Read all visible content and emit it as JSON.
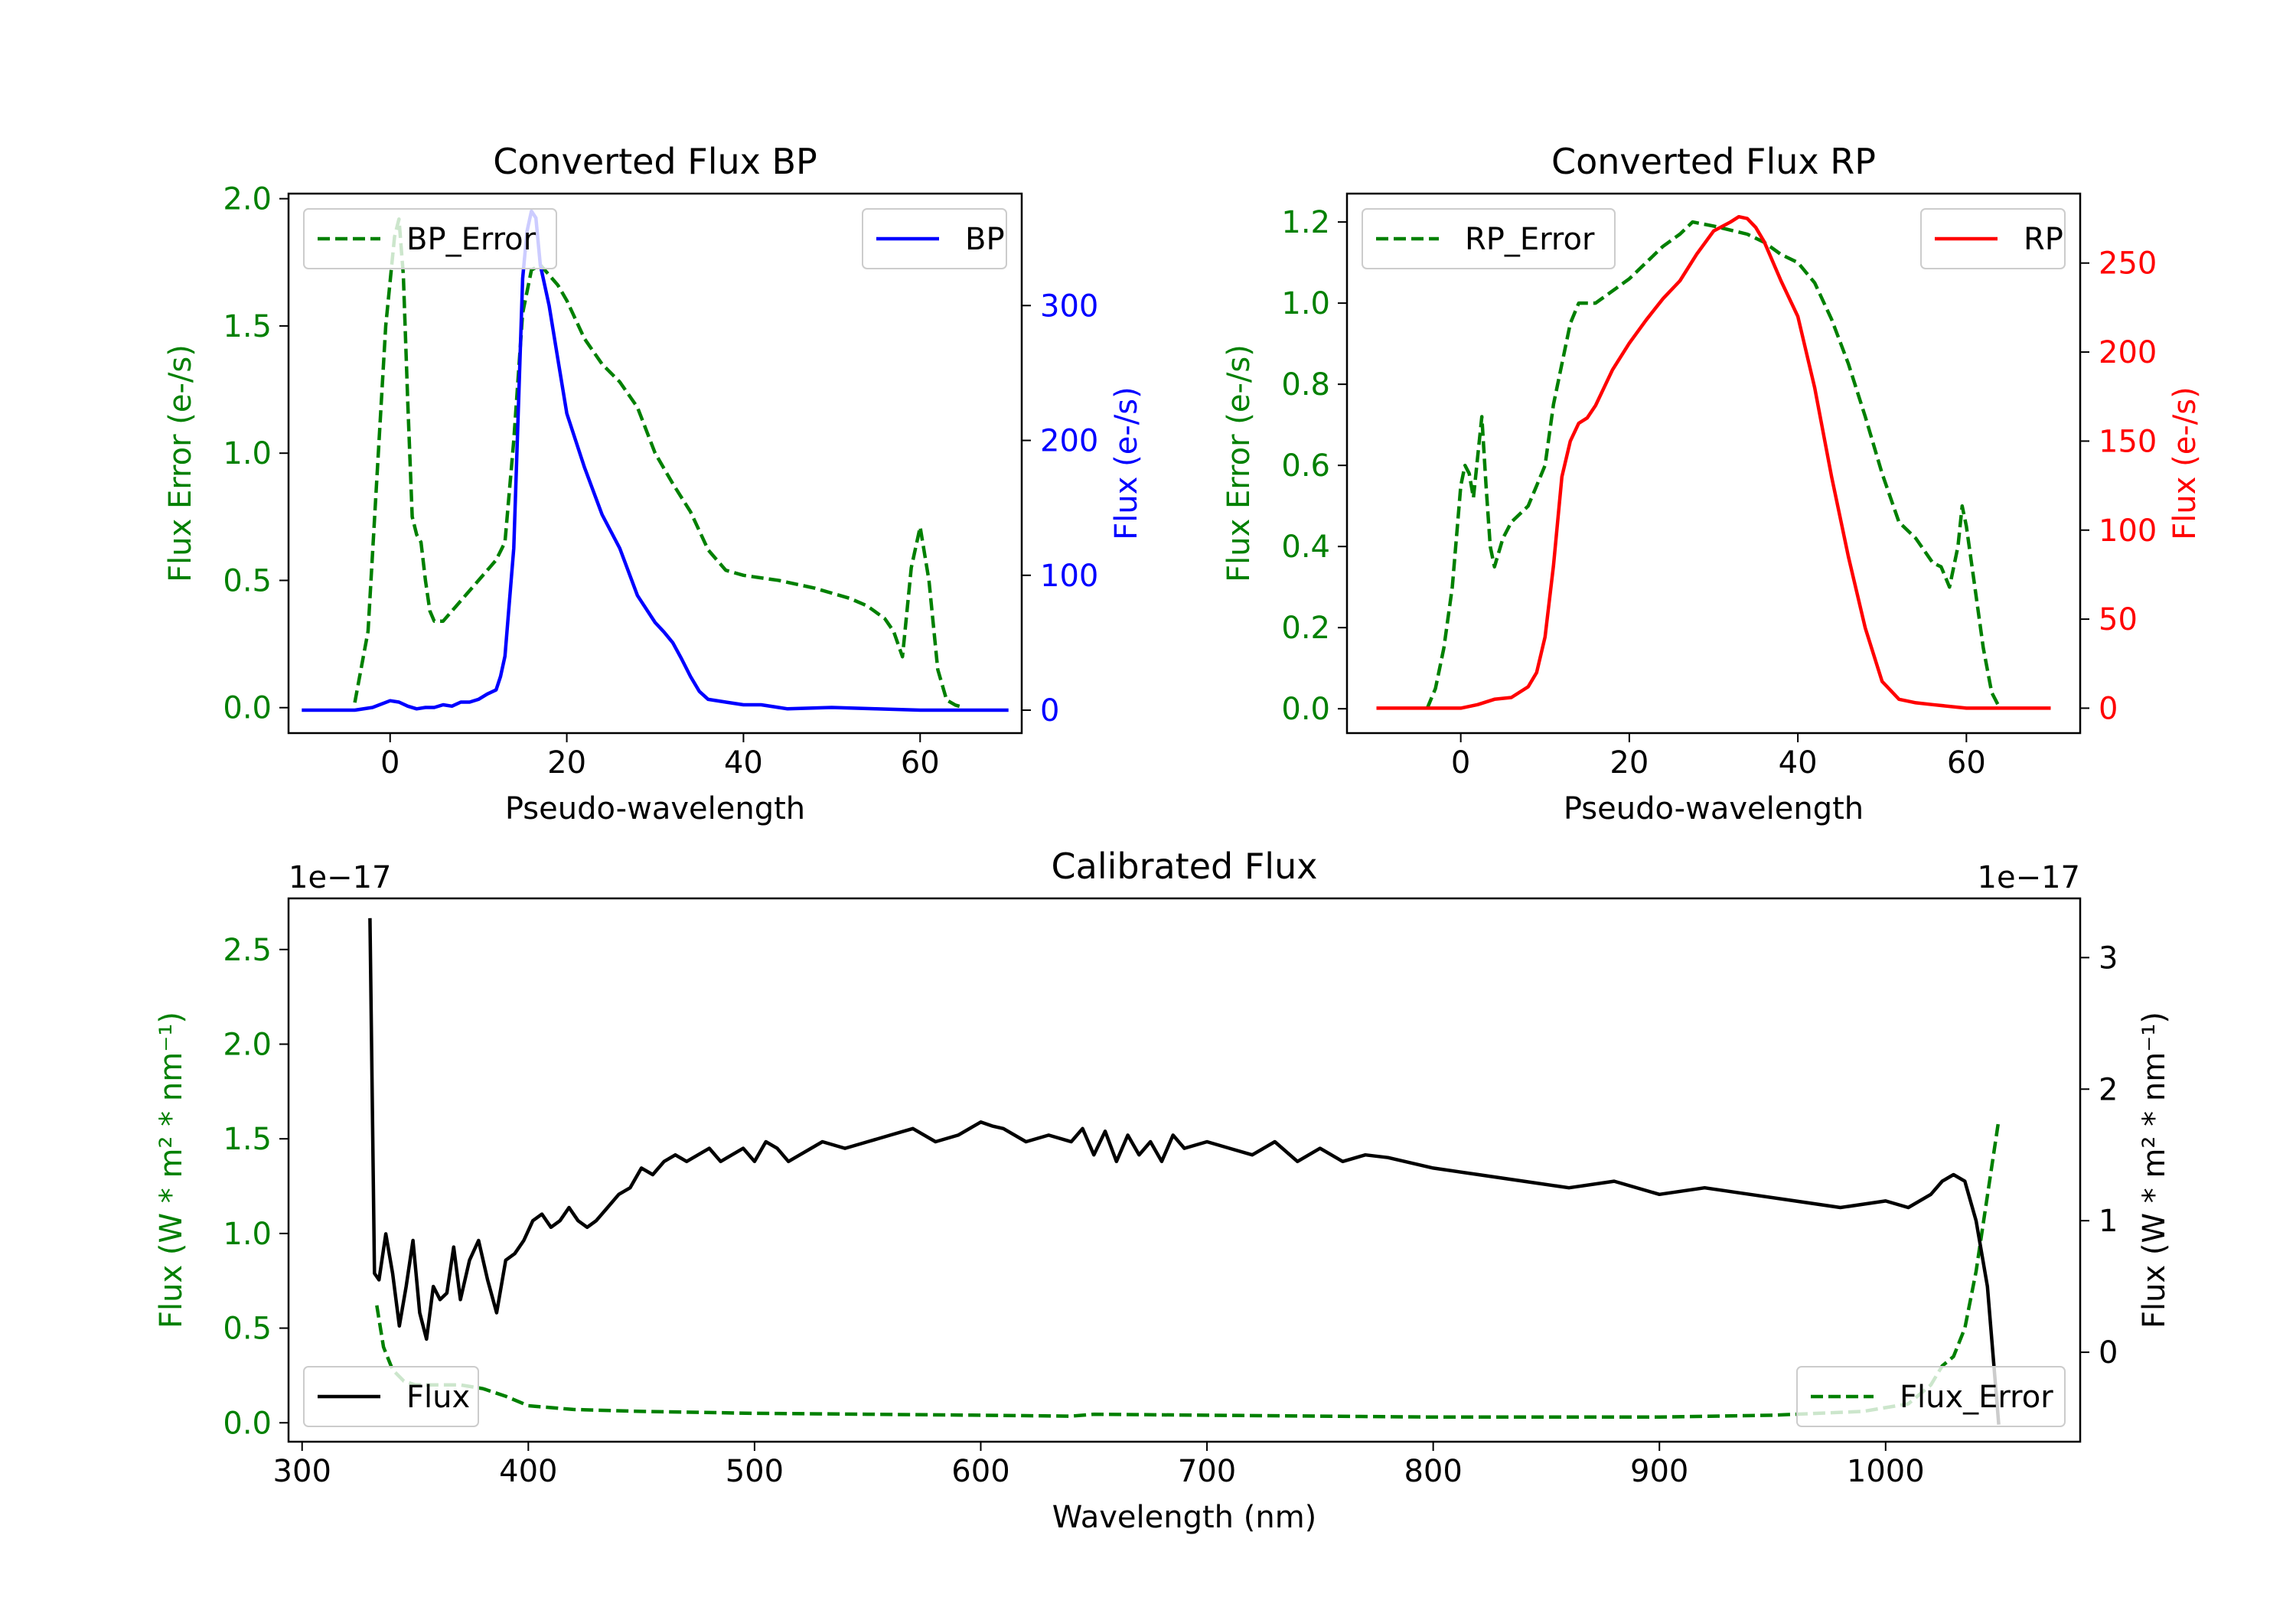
{
  "colors": {
    "bp": "#0000ff",
    "rp": "#ff0000",
    "error": "#008000",
    "flux": "#000000",
    "axis": "#000000"
  },
  "chart_data": [
    {
      "id": "bp",
      "type": "line",
      "title": "Converted Flux BP",
      "xlabel": "Pseudo-wavelength",
      "ylabel_left": "Flux Error (e-/s)",
      "ylabel_right": "Flux (e-/s)",
      "xlim": [
        -11.5,
        71.5
      ],
      "ylim_left": [
        -0.1,
        2.02
      ],
      "ylim_right": [
        -17,
        383
      ],
      "xticks": [
        0,
        20,
        40,
        60
      ],
      "yticks_left": [
        0.0,
        0.5,
        1.0,
        1.5,
        2.0
      ],
      "yticks_right": [
        0,
        100,
        200,
        300
      ],
      "legend_left": "BP_Error",
      "legend_right": "BP",
      "series": [
        {
          "name": "BP_Error",
          "axis": "left",
          "style": "dashed",
          "color": "#008000",
          "x": [
            -4,
            -2.5,
            -1.5,
            -0.5,
            0.5,
            1,
            1.5,
            2,
            2.5,
            3,
            3.5,
            4,
            4.5,
            5,
            6,
            8,
            10,
            12,
            13,
            14,
            15,
            16,
            17,
            18,
            19,
            20,
            22,
            24,
            26,
            28,
            30,
            32,
            34,
            36,
            38,
            40,
            44,
            48,
            52,
            54,
            56,
            57,
            58,
            59,
            60,
            61,
            62,
            63,
            64,
            65
          ],
          "y": [
            0.02,
            0.3,
            0.9,
            1.5,
            1.85,
            1.92,
            1.7,
            1.2,
            0.75,
            0.68,
            0.65,
            0.5,
            0.38,
            0.34,
            0.34,
            0.42,
            0.5,
            0.58,
            0.65,
            1.05,
            1.55,
            1.72,
            1.74,
            1.7,
            1.66,
            1.6,
            1.45,
            1.35,
            1.28,
            1.18,
            1.0,
            0.88,
            0.77,
            0.62,
            0.54,
            0.52,
            0.5,
            0.47,
            0.43,
            0.4,
            0.35,
            0.3,
            0.2,
            0.55,
            0.71,
            0.5,
            0.15,
            0.03,
            0.01,
            0.0
          ]
        },
        {
          "name": "BP",
          "axis": "right",
          "style": "solid",
          "color": "#0000ff",
          "x": [
            -10,
            -6,
            -4,
            -2,
            0,
            1,
            2,
            3,
            4,
            5,
            6,
            7,
            8,
            9,
            10,
            11,
            12,
            12.5,
            13,
            14,
            15,
            15.5,
            16,
            16.5,
            17,
            18,
            19,
            20,
            22,
            24,
            26,
            28,
            30,
            31,
            32,
            33,
            34,
            35,
            36,
            38,
            40,
            42,
            45,
            50,
            55,
            60,
            65,
            70
          ],
          "y": [
            0,
            0,
            0,
            2,
            7,
            6,
            3,
            1,
            2,
            2,
            4,
            3,
            6,
            6,
            8,
            12,
            15,
            25,
            40,
            120,
            320,
            355,
            370,
            365,
            330,
            300,
            260,
            220,
            180,
            145,
            120,
            85,
            65,
            58,
            50,
            38,
            25,
            14,
            8,
            6,
            4,
            4,
            1,
            2,
            1,
            0,
            0,
            0
          ]
        }
      ]
    },
    {
      "id": "rp",
      "type": "line",
      "title": "Converted Flux RP",
      "xlabel": "Pseudo-wavelength",
      "ylabel_left": "Flux Error (e-/s)",
      "ylabel_right": "Flux (e-/s)",
      "xlim": [
        -13.5,
        73.5
      ],
      "ylim_left": [
        -0.06,
        1.27
      ],
      "ylim_right": [
        -14,
        289
      ],
      "xticks": [
        0,
        20,
        40,
        60
      ],
      "yticks_left": [
        0.0,
        0.2,
        0.4,
        0.6,
        0.8,
        1.0,
        1.2
      ],
      "yticks_right": [
        0,
        50,
        100,
        150,
        200,
        250
      ],
      "legend_left": "RP_Error",
      "legend_right": "RP",
      "series": [
        {
          "name": "RP_Error",
          "axis": "left",
          "style": "dashed",
          "color": "#008000",
          "x": [
            -4,
            -3,
            -2,
            -1,
            0,
            0.5,
            1,
            1.5,
            2,
            2.5,
            3,
            3.5,
            4,
            5,
            6,
            8,
            9,
            10,
            11,
            12,
            13,
            14,
            15,
            16,
            18,
            20,
            22,
            24,
            26,
            27.5,
            30,
            32,
            34,
            36,
            38,
            40,
            42,
            44,
            46,
            48,
            50,
            52,
            54,
            55,
            56,
            57,
            58,
            59,
            59.5,
            60,
            61,
            62,
            63,
            64
          ],
          "y": [
            0.0,
            0.05,
            0.15,
            0.3,
            0.55,
            0.6,
            0.58,
            0.52,
            0.62,
            0.72,
            0.55,
            0.4,
            0.35,
            0.42,
            0.46,
            0.5,
            0.55,
            0.6,
            0.75,
            0.85,
            0.95,
            1.0,
            1.0,
            1.0,
            1.03,
            1.06,
            1.1,
            1.14,
            1.17,
            1.2,
            1.19,
            1.18,
            1.17,
            1.15,
            1.12,
            1.1,
            1.05,
            0.96,
            0.85,
            0.72,
            0.58,
            0.46,
            0.42,
            0.39,
            0.36,
            0.35,
            0.3,
            0.4,
            0.5,
            0.45,
            0.3,
            0.15,
            0.04,
            0.0
          ]
        },
        {
          "name": "RP",
          "axis": "right",
          "style": "solid",
          "color": "#ff0000",
          "x": [
            -10,
            -5,
            0,
            2,
            4,
            6,
            8,
            9,
            10,
            11,
            12,
            13,
            14,
            15,
            16,
            18,
            20,
            22,
            24,
            26,
            28,
            30,
            32,
            33,
            34,
            35,
            36,
            38,
            40,
            42,
            44,
            46,
            48,
            50,
            52,
            54,
            56,
            60,
            65,
            70
          ],
          "y": [
            0,
            0,
            0,
            2,
            5,
            6,
            12,
            20,
            40,
            80,
            130,
            150,
            160,
            163,
            170,
            190,
            205,
            218,
            230,
            240,
            255,
            268,
            273,
            276,
            275,
            270,
            262,
            240,
            220,
            180,
            130,
            85,
            45,
            15,
            5,
            3,
            2,
            0,
            0,
            0
          ]
        }
      ]
    },
    {
      "id": "calibrated",
      "type": "line",
      "title": "Calibrated Flux",
      "xlabel": "Wavelength (nm)",
      "ylabel_left": "Flux (W * m² * nm⁻¹)",
      "ylabel_right": "Flux (W * m² * nm⁻¹)",
      "offset_left": "1e−17",
      "offset_right": "1e−17",
      "xlim": [
        294,
        1086
      ],
      "ylim_left": [
        -0.1,
        2.77
      ],
      "ylim_right": [
        -0.68,
        3.45
      ],
      "xticks": [
        300,
        400,
        500,
        600,
        700,
        800,
        900,
        1000
      ],
      "yticks_left": [
        0.0,
        0.5,
        1.0,
        1.5,
        2.0,
        2.5
      ],
      "yticks_right": [
        0,
        1,
        2,
        3
      ],
      "legend_left": "Flux",
      "legend_right": "Flux_Error",
      "series": [
        {
          "name": "Flux_Error",
          "axis": "left",
          "style": "dashed",
          "color": "#008000",
          "x": [
            333,
            336,
            340,
            345,
            350,
            360,
            370,
            380,
            390,
            400,
            420,
            450,
            500,
            550,
            600,
            640,
            650,
            700,
            750,
            800,
            850,
            900,
            950,
            990,
            1010,
            1020,
            1025,
            1030,
            1035,
            1040,
            1045,
            1050
          ],
          "y": [
            0.62,
            0.4,
            0.28,
            0.22,
            0.2,
            0.2,
            0.2,
            0.18,
            0.14,
            0.09,
            0.07,
            0.06,
            0.05,
            0.045,
            0.04,
            0.035,
            0.045,
            0.04,
            0.035,
            0.03,
            0.03,
            0.03,
            0.04,
            0.06,
            0.1,
            0.2,
            0.3,
            0.35,
            0.5,
            0.8,
            1.2,
            1.6
          ]
        },
        {
          "name": "Flux",
          "axis": "right",
          "style": "solid",
          "color": "#000000",
          "x": [
            330,
            332,
            334,
            337,
            340,
            343,
            346,
            349,
            352,
            355,
            358,
            361,
            364,
            367,
            370,
            374,
            378,
            382,
            386,
            390,
            394,
            398,
            402,
            406,
            410,
            414,
            418,
            422,
            426,
            430,
            435,
            440,
            445,
            450,
            455,
            460,
            465,
            470,
            475,
            480,
            485,
            490,
            495,
            500,
            505,
            510,
            515,
            520,
            530,
            540,
            550,
            560,
            570,
            580,
            590,
            600,
            605,
            610,
            620,
            630,
            640,
            645,
            650,
            655,
            660,
            665,
            670,
            675,
            680,
            685,
            690,
            700,
            710,
            720,
            730,
            740,
            750,
            760,
            770,
            780,
            800,
            820,
            840,
            860,
            880,
            900,
            920,
            940,
            960,
            980,
            1000,
            1010,
            1020,
            1025,
            1030,
            1035,
            1040,
            1045,
            1050
          ],
          "y": [
            3.3,
            0.6,
            0.55,
            0.9,
            0.6,
            0.2,
            0.5,
            0.85,
            0.3,
            0.1,
            0.5,
            0.4,
            0.45,
            0.8,
            0.4,
            0.7,
            0.85,
            0.55,
            0.3,
            0.7,
            0.75,
            0.85,
            1.0,
            1.05,
            0.95,
            1.0,
            1.1,
            1.0,
            0.95,
            1.0,
            1.1,
            1.2,
            1.25,
            1.4,
            1.35,
            1.45,
            1.5,
            1.45,
            1.5,
            1.55,
            1.45,
            1.5,
            1.55,
            1.45,
            1.6,
            1.55,
            1.45,
            1.5,
            1.6,
            1.55,
            1.6,
            1.65,
            1.7,
            1.6,
            1.65,
            1.75,
            1.72,
            1.7,
            1.6,
            1.65,
            1.6,
            1.7,
            1.5,
            1.68,
            1.45,
            1.65,
            1.5,
            1.6,
            1.45,
            1.65,
            1.55,
            1.6,
            1.55,
            1.5,
            1.6,
            1.45,
            1.55,
            1.45,
            1.5,
            1.48,
            1.4,
            1.35,
            1.3,
            1.25,
            1.3,
            1.2,
            1.25,
            1.2,
            1.15,
            1.1,
            1.15,
            1.1,
            1.2,
            1.3,
            1.35,
            1.3,
            1.0,
            0.5,
            -0.55
          ]
        }
      ]
    }
  ]
}
